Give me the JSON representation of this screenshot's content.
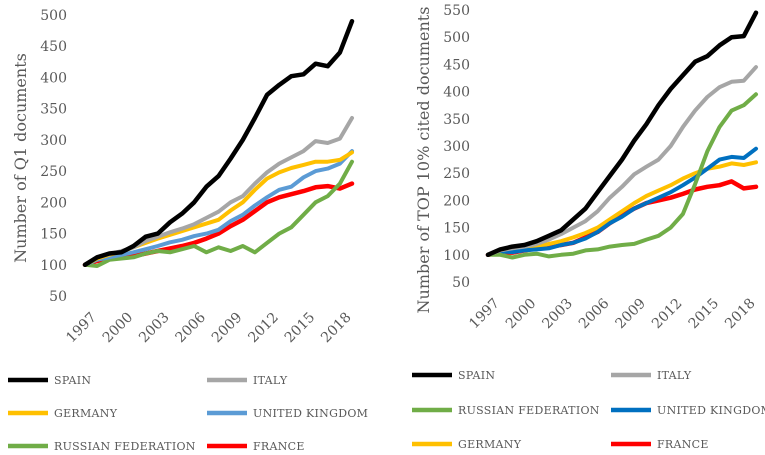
{
  "chart_data": [
    {
      "type": "line",
      "ylabel": "Number of Q1 documents",
      "xlabel": "",
      "ylim": [
        50,
        500
      ],
      "yticks": [
        50,
        100,
        150,
        200,
        250,
        300,
        350,
        400,
        450,
        500
      ],
      "xticks": [
        "1997",
        "2000",
        "2003",
        "2006",
        "2009",
        "2012",
        "2015",
        "2018"
      ],
      "x": [
        1997,
        1998,
        1999,
        2000,
        2001,
        2002,
        2003,
        2004,
        2005,
        2006,
        2007,
        2008,
        2009,
        2010,
        2011,
        2012,
        2013,
        2014,
        2015,
        2016,
        2017,
        2018,
        2019
      ],
      "series": [
        {
          "name": "SPAIN",
          "color": "#000000",
          "values": [
            100,
            112,
            118,
            120,
            130,
            145,
            150,
            168,
            182,
            200,
            225,
            242,
            270,
            300,
            335,
            372,
            388,
            402,
            405,
            422,
            418,
            440,
            490
          ]
        },
        {
          "name": "ITALY",
          "color": "#a6a6a6",
          "values": [
            100,
            112,
            117,
            122,
            128,
            138,
            145,
            152,
            158,
            165,
            175,
            185,
            200,
            210,
            230,
            248,
            262,
            272,
            282,
            298,
            295,
            302,
            335
          ]
        },
        {
          "name": "GERMANY",
          "color": "#ffc000",
          "values": [
            100,
            110,
            116,
            121,
            128,
            135,
            142,
            148,
            154,
            160,
            166,
            172,
            187,
            200,
            220,
            238,
            248,
            255,
            260,
            265,
            265,
            268,
            280
          ]
        },
        {
          "name": "UNITED KINGDOM",
          "color": "#5b9bd5",
          "values": [
            100,
            108,
            112,
            116,
            120,
            125,
            130,
            136,
            140,
            146,
            150,
            156,
            170,
            180,
            195,
            208,
            220,
            225,
            240,
            250,
            254,
            262,
            282
          ]
        },
        {
          "name": "RUSSIAN FEDERATION",
          "color": "#70ad47",
          "values": [
            100,
            98,
            108,
            110,
            112,
            118,
            122,
            120,
            125,
            130,
            120,
            128,
            122,
            130,
            120,
            135,
            150,
            160,
            180,
            200,
            210,
            230,
            265
          ]
        },
        {
          "name": "FRANCE",
          "color": "#ff0000",
          "values": [
            100,
            106,
            110,
            112,
            114,
            118,
            122,
            126,
            130,
            135,
            142,
            150,
            162,
            172,
            186,
            200,
            208,
            213,
            218,
            224,
            226,
            222,
            230
          ]
        }
      ],
      "legend": [
        "SPAIN",
        "ITALY",
        "GERMANY",
        "UNITED KINGDOM",
        "RUSSIAN FEDERATION",
        "FRANCE"
      ]
    },
    {
      "type": "line",
      "ylabel": "Number of TOP 10% cited documents",
      "xlabel": "",
      "ylim": [
        50,
        550
      ],
      "yticks": [
        50,
        100,
        150,
        200,
        250,
        300,
        350,
        400,
        450,
        500,
        550
      ],
      "xticks": [
        "1997",
        "2000",
        "2003",
        "2006",
        "2009",
        "2012",
        "2015",
        "2018"
      ],
      "x": [
        1997,
        1998,
        1999,
        2000,
        2001,
        2002,
        2003,
        2004,
        2005,
        2006,
        2007,
        2008,
        2009,
        2010,
        2011,
        2012,
        2013,
        2014,
        2015,
        2016,
        2017,
        2018,
        2019
      ],
      "series": [
        {
          "name": "SPAIN",
          "color": "#000000",
          "values": [
            100,
            110,
            115,
            118,
            125,
            135,
            145,
            165,
            185,
            215,
            245,
            275,
            310,
            340,
            375,
            405,
            430,
            455,
            465,
            485,
            500,
            502,
            545
          ]
        },
        {
          "name": "ITALY",
          "color": "#a6a6a6",
          "values": [
            100,
            108,
            112,
            115,
            120,
            128,
            138,
            150,
            162,
            180,
            205,
            225,
            248,
            262,
            275,
            300,
            335,
            365,
            390,
            408,
            418,
            420,
            445
          ]
        },
        {
          "name": "RUSSIAN FEDERATION",
          "color": "#70ad47",
          "values": [
            100,
            100,
            95,
            100,
            102,
            97,
            100,
            102,
            108,
            110,
            115,
            118,
            120,
            128,
            135,
            150,
            175,
            230,
            290,
            335,
            365,
            375,
            395
          ]
        },
        {
          "name": "UNITED KINGDOM",
          "color": "#0070c0",
          "values": [
            100,
            106,
            105,
            108,
            110,
            112,
            118,
            122,
            130,
            142,
            158,
            170,
            185,
            195,
            205,
            215,
            228,
            242,
            258,
            275,
            280,
            278,
            295
          ]
        },
        {
          "name": "GERMANY",
          "color": "#ffc000",
          "values": [
            100,
            104,
            108,
            110,
            115,
            120,
            125,
            132,
            140,
            150,
            165,
            180,
            195,
            208,
            218,
            228,
            240,
            250,
            258,
            262,
            268,
            265,
            270
          ]
        },
        {
          "name": "FRANCE",
          "color": "#ff0000",
          "values": [
            100,
            104,
            104,
            108,
            112,
            115,
            118,
            122,
            132,
            142,
            158,
            172,
            185,
            195,
            200,
            205,
            212,
            220,
            225,
            228,
            235,
            222,
            225
          ]
        }
      ],
      "legend": [
        "SPAIN",
        "ITALY",
        "RUSSIAN FEDERATION",
        "UNITED KINGDOM",
        "GERMANY",
        "FRANCE"
      ]
    }
  ]
}
